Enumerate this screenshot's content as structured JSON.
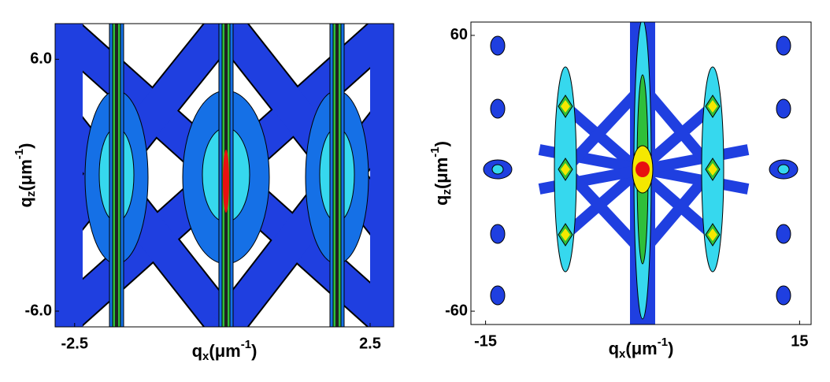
{
  "chart_data": [
    {
      "type": "contour",
      "xlabel": {
        "symbol": "q",
        "sub": "x",
        "unit": "(μm",
        "sup": "-1",
        "close": ")"
      },
      "ylabel": {
        "symbol": "q",
        "sub": "z",
        "unit": "(μm",
        "sup": "-1",
        "close": ")"
      },
      "xlim": [
        -2.83,
        2.9
      ],
      "ylim": [
        -6.75,
        7.7
      ],
      "xticks": [
        -2.5,
        2.5
      ],
      "yticks": [
        {
          "value": -6,
          "label": "-6.0"
        },
        {
          "value": 6,
          "label": "6.0"
        }
      ]
    },
    {
      "type": "contour",
      "xlabel": {
        "symbol": "q",
        "sub": "x",
        "unit": "(μm",
        "sup": "-1",
        "close": ")"
      },
      "ylabel": {
        "symbol": "q",
        "sub": "z",
        "unit": "(μm",
        "sup": "-1",
        "close": ")"
      },
      "xlim": [
        -16.4,
        16.1
      ],
      "ylim": [
        -65.8,
        65.8
      ],
      "xticks": [
        -15,
        15
      ],
      "yticks": [
        -60,
        60
      ]
    }
  ]
}
